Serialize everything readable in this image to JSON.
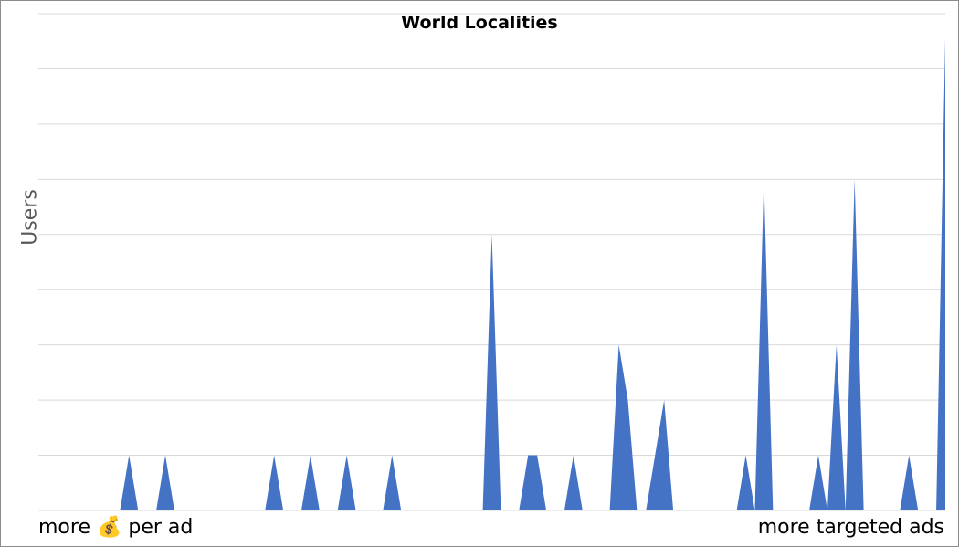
{
  "chart_data": {
    "type": "area",
    "title": "World Localities",
    "ylabel": "Users",
    "xlabel_left": "more 💰 per ad",
    "xlabel_right": "more targeted ads",
    "ylim": [
      0,
      9
    ],
    "grid": true,
    "legend": "none",
    "series_color": "#4472c4",
    "gridline_color": "#d9d9d9",
    "x": [
      0,
      1,
      2,
      3,
      4,
      5,
      6,
      7,
      8,
      9,
      10,
      11,
      12,
      13,
      14,
      15,
      16,
      17,
      18,
      19,
      20,
      21,
      22,
      23,
      24,
      25,
      26,
      27,
      28,
      29,
      30,
      31,
      32,
      33,
      34,
      35,
      36,
      37,
      38,
      39,
      40,
      41,
      42,
      43,
      44,
      45,
      46,
      47,
      48,
      49,
      50,
      51,
      52,
      53,
      54,
      55,
      56,
      57,
      58,
      59,
      60,
      61,
      62,
      63,
      64,
      65,
      66,
      67,
      68,
      69,
      70,
      71,
      72,
      73,
      74,
      75,
      76,
      77,
      78,
      79,
      80,
      81,
      82,
      83,
      84,
      85,
      86,
      87,
      88,
      89,
      90,
      91,
      92,
      93,
      94,
      95,
      96,
      97,
      98,
      99,
      100
    ],
    "values": [
      0,
      0,
      0,
      0,
      0,
      0,
      0,
      0,
      0,
      0,
      1,
      0,
      0,
      0,
      1,
      0,
      0,
      0,
      0,
      0,
      0,
      0,
      0,
      0,
      0,
      0,
      1,
      0,
      0,
      0,
      1,
      0,
      0,
      0,
      1,
      0,
      0,
      0,
      0,
      1,
      0,
      0,
      0,
      0,
      0,
      0,
      0,
      0,
      0,
      0,
      5,
      0,
      0,
      0,
      1,
      1,
      0,
      0,
      0,
      1,
      0,
      0,
      0,
      0,
      3,
      2,
      0,
      0,
      1,
      2,
      0,
      0,
      0,
      0,
      0,
      0,
      0,
      0,
      1,
      0,
      6,
      0,
      0,
      0,
      0,
      0,
      1,
      0,
      3,
      0,
      6,
      0,
      0,
      0,
      0,
      0,
      1,
      0,
      0,
      0,
      17
    ]
  }
}
